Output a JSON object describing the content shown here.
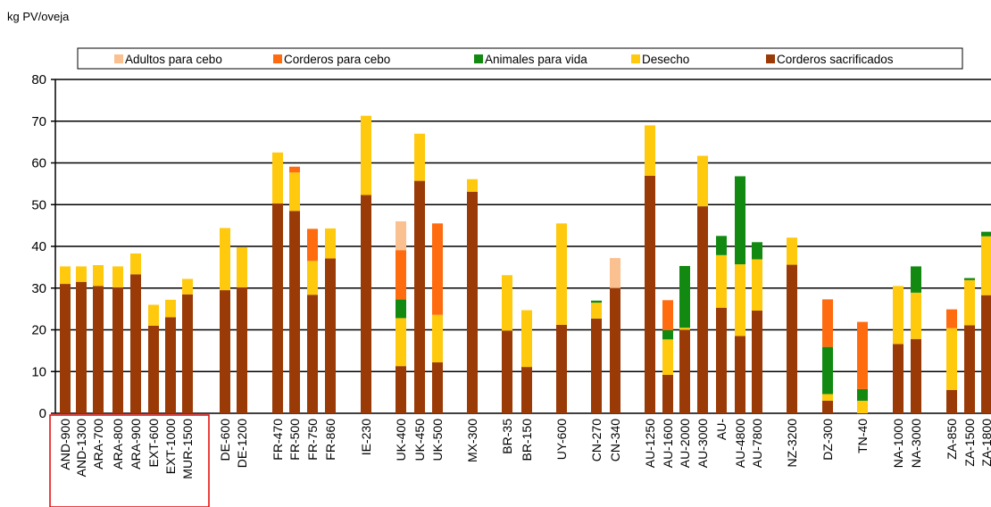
{
  "chart_data": {
    "type": "bar",
    "stacked": true,
    "ylabel": "kg PV/oveja",
    "xlabel": "",
    "ylim": [
      0,
      80
    ],
    "yticks": [
      0,
      10,
      20,
      30,
      40,
      50,
      60,
      70,
      80
    ],
    "grid": true,
    "legend_position": "top",
    "series": [
      {
        "name": "Adultos para cebo",
        "color": "#fac090"
      },
      {
        "name": "Corderos para cebo",
        "color": "#ff6b0f"
      },
      {
        "name": "Animales para vida",
        "color": "#128a12"
      },
      {
        "name": "Desecho",
        "color": "#ffc90e"
      },
      {
        "name": "Corderos sacrificados",
        "color": "#9a3a06"
      }
    ],
    "categories": [
      "AND-900",
      "AND-1300",
      "ARA-700",
      "ARA-800",
      "ARA-900",
      "EXT-600",
      "EXT-1000",
      "MUR-1500",
      "DE-600",
      "DE-1200",
      "FR-470",
      "FR-500",
      "FR-750",
      "FR-860",
      "IE-230",
      "UK-400",
      "UK-450",
      "UK-500",
      "MX-300",
      "BR-35",
      "BR-150",
      "UY-600",
      "CN-270",
      "CN-340",
      "AU-1250",
      "AU-1600",
      "AU-2000",
      "AU-3000",
      "AU-",
      "AU-4800",
      "AU-7800",
      "NZ-3200",
      "DZ-300",
      "TN-40",
      "NA-1000",
      "NA-3000",
      "ZA-850",
      "ZA-1500",
      "ZA-1800"
    ],
    "bars": [
      {
        "category": "AND-900",
        "Corderos sacrificados": 31,
        "Desecho": 4.2
      },
      {
        "category": "AND-1300",
        "Corderos sacrificados": 31.5,
        "Desecho": 3.7
      },
      {
        "category": "ARA-700",
        "Corderos sacrificados": 30.5,
        "Desecho": 5
      },
      {
        "category": "ARA-800",
        "Corderos sacrificados": 30.2,
        "Desecho": 5
      },
      {
        "category": "ARA-900",
        "Corderos sacrificados": 33.3,
        "Desecho": 5
      },
      {
        "category": "EXT-600",
        "Corderos sacrificados": 21,
        "Desecho": 5
      },
      {
        "category": "EXT-1000",
        "Corderos sacrificados": 23,
        "Desecho": 4.2
      },
      {
        "category": "MUR-1500",
        "Corderos sacrificados": 28.5,
        "Desecho": 3.7
      },
      {
        "category": "DE-600",
        "Corderos sacrificados": 29.5,
        "Desecho": 14.9
      },
      {
        "category": "DE-1200",
        "Corderos sacrificados": 30.2,
        "Desecho": 9.6
      },
      {
        "category": "FR-470",
        "Corderos sacrificados": 50.3,
        "Desecho": 12.2
      },
      {
        "category": "FR-500",
        "Corderos sacrificados": 48.5,
        "Desecho": 9.2,
        "Corderos para cebo": 1.4
      },
      {
        "category": "FR-750",
        "Corderos sacrificados": 28.4,
        "Desecho": 8.1,
        "Corderos para cebo": 7.7
      },
      {
        "category": "FR-860",
        "Corderos sacrificados": 37.1,
        "Desecho": 7.2
      },
      {
        "category": "IE-230",
        "Corderos sacrificados": 52.3,
        "Desecho": 19
      },
      {
        "category": "UK-400",
        "Corderos sacrificados": 11.3,
        "Desecho": 11.5,
        "Animales para vida": 4.5,
        "Corderos para cebo": 11.8,
        "Adultos para cebo": 6.9
      },
      {
        "category": "UK-450",
        "Corderos sacrificados": 55.7,
        "Desecho": 11.3
      },
      {
        "category": "UK-500",
        "Corderos sacrificados": 12.2,
        "Desecho": 11.4,
        "Corderos para cebo": 21.9
      },
      {
        "category": "MX-300",
        "Corderos sacrificados": 53.1,
        "Desecho": 3
      },
      {
        "category": "BR-35",
        "Corderos sacrificados": 19.8,
        "Desecho": 13.3
      },
      {
        "category": "BR-150",
        "Corderos sacrificados": 11.1,
        "Desecho": 13.6
      },
      {
        "category": "UY-600",
        "Corderos sacrificados": 21.2,
        "Desecho": 24.3
      },
      {
        "category": "CN-270",
        "Corderos sacrificados": 22.7,
        "Desecho": 3.8,
        "Animales para vida": 0.5
      },
      {
        "category": "CN-340",
        "Corderos sacrificados": 30,
        "Adultos para cebo": 7.2
      },
      {
        "category": "AU-1250",
        "Corderos sacrificados": 56.9,
        "Desecho": 12.1
      },
      {
        "category": "AU-1600",
        "Corderos sacrificados": 9.2,
        "Desecho": 8.5,
        "Animales para vida": 2.2,
        "Corderos para cebo": 7.2
      },
      {
        "category": "AU-2000",
        "Corderos sacrificados": 20,
        "Desecho": 0.5,
        "Animales para vida": 14.8
      },
      {
        "category": "AU-3000",
        "Corderos sacrificados": 49.6,
        "Desecho": 12.1
      },
      {
        "category": "AU-",
        "Corderos sacrificados": 25.3,
        "Desecho": 12.6,
        "Animales para vida": 4.6
      },
      {
        "category": "AU-4800",
        "Corderos sacrificados": 18.5,
        "Desecho": 17.2,
        "Animales para vida": 21.1
      },
      {
        "category": "AU-7800",
        "Corderos sacrificados": 24.6,
        "Desecho": 12.3,
        "Animales para vida": 4.1
      },
      {
        "category": "NZ-3200",
        "Corderos sacrificados": 35.6,
        "Desecho": 6.5
      },
      {
        "category": "DZ-300",
        "Corderos sacrificados": 3,
        "Desecho": 1.6,
        "Animales para vida": 11.3,
        "Corderos para cebo": 11.4
      },
      {
        "category": "TN-40",
        "Desecho": 3,
        "Animales para vida": 2.8,
        "Corderos para cebo": 16.1
      },
      {
        "category": "NA-1000",
        "Corderos sacrificados": 16.6,
        "Desecho": 13.9
      },
      {
        "category": "NA-3000",
        "Corderos sacrificados": 17.8,
        "Desecho": 11.1,
        "Animales para vida": 6.3
      },
      {
        "category": "ZA-850",
        "Corderos sacrificados": 5.6,
        "Desecho": 14.8,
        "Corderos para cebo": 4.5
      },
      {
        "category": "ZA-1500",
        "Corderos sacrificados": 21.1,
        "Desecho": 10.8,
        "Animales para vida": 0.5
      },
      {
        "category": "ZA-1800",
        "Corderos sacrificados": 28.3,
        "Desecho": 14.1,
        "Animales para vida": 1.1
      }
    ]
  }
}
